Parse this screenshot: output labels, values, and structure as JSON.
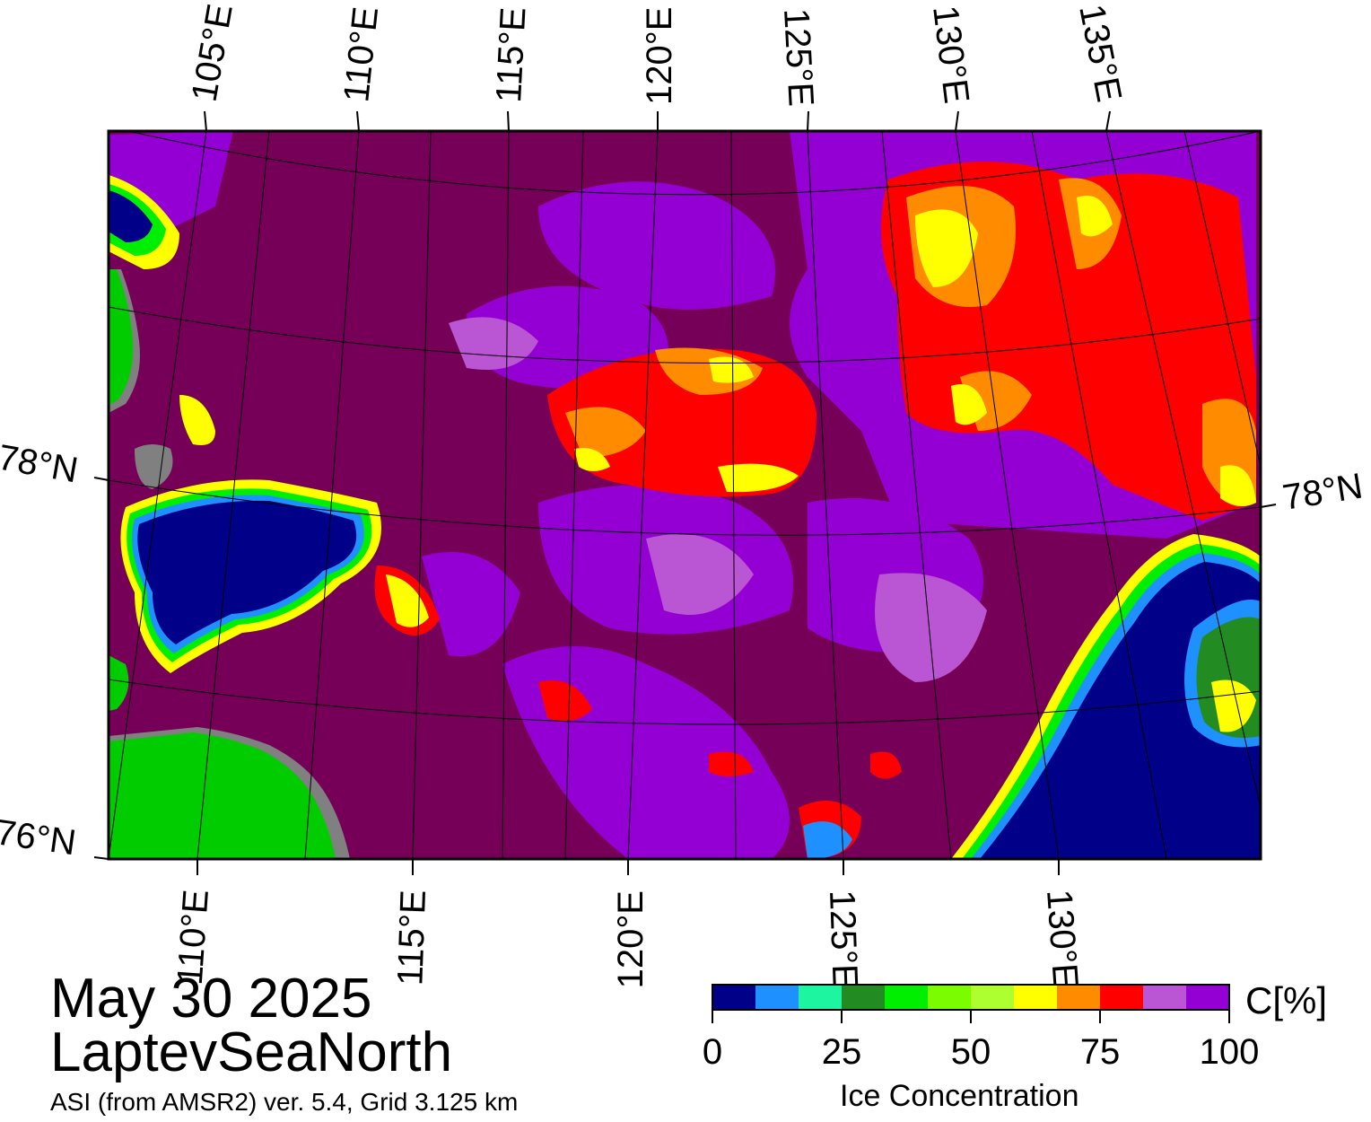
{
  "header": {
    "date": "May 30 2025",
    "region": "LaptevSeaNorth",
    "product": "ASI (from AMSR2) ver. 5.4,  Grid 3.125 km"
  },
  "map": {
    "top_lon_labels": [
      "105°E",
      "110°E",
      "115°E",
      "120°E",
      "125°E",
      "130°E",
      "135°E"
    ],
    "bottom_lon_labels": [
      "110°E",
      "115°E",
      "120°E",
      "125°E",
      "130°E"
    ],
    "left_lat_labels": [
      "78°N",
      "76°N"
    ],
    "right_lat_labels": [
      "78°N"
    ],
    "colors": {
      "land": "#00cc00",
      "land_shadow": "#808080",
      "open_water": "#000088",
      "ice_100": "#760058"
    }
  },
  "colorbar": {
    "title": "Ice Concentration",
    "unit": "C[%]",
    "ticks": [
      "0",
      "25",
      "50",
      "75",
      "100"
    ],
    "colors": [
      "#000088",
      "#1e90ff",
      "#1ef5a0",
      "#228b22",
      "#00ee00",
      "#7cfc00",
      "#adff2f",
      "#ffff00",
      "#ff8c00",
      "#ff0000",
      "#ba55d3",
      "#9400d3"
    ]
  }
}
